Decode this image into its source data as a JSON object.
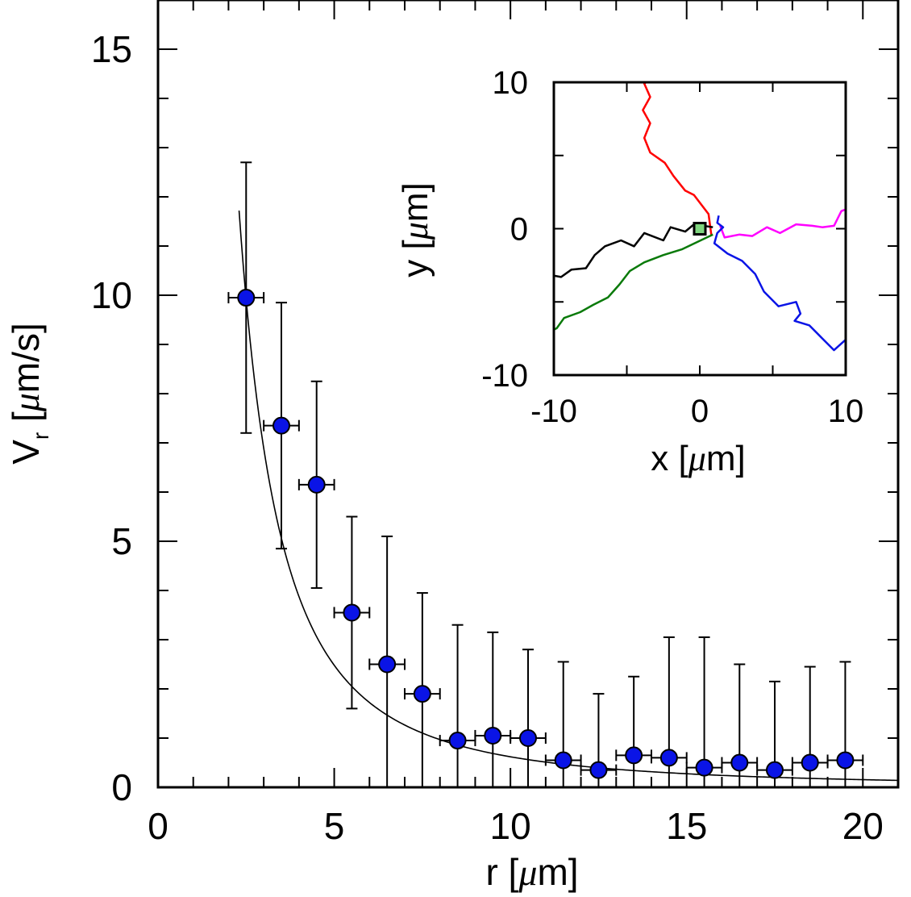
{
  "chart_data": [
    {
      "type": "scatter",
      "title": "",
      "xlabel": "r [μm]",
      "ylabel": "V_r [μm/s]",
      "xlabel_parts": {
        "pre": "r [",
        "mu": "μ",
        "post": "m]"
      },
      "ylabel_parts": {
        "main": "V",
        "sub": "r",
        "pre": " [",
        "mu": "μ",
        "post": "m/s]"
      },
      "xlim": [
        0,
        21
      ],
      "ylim": [
        0,
        16
      ],
      "xticks": [
        0,
        5,
        10,
        15,
        20
      ],
      "yticks": [
        0,
        5,
        10,
        15
      ],
      "xtick_labels": [
        "0",
        "5",
        "10",
        "15",
        "20"
      ],
      "ytick_labels": [
        "0",
        "5",
        "10",
        "15"
      ],
      "grid": false,
      "marker_color": "#0a14e6",
      "series": [
        {
          "x": [
            2.5,
            3.5,
            4.5,
            5.5,
            6.5,
            7.5,
            8.5,
            9.5,
            10.5,
            11.5,
            12.5,
            13.5,
            14.5,
            15.5,
            16.5,
            17.5,
            18.5,
            19.5
          ],
          "y": [
            9.95,
            7.35,
            6.15,
            3.55,
            2.5,
            1.9,
            0.95,
            1.05,
            1.0,
            0.55,
            0.35,
            0.65,
            0.6,
            0.4,
            0.5,
            0.35,
            0.5,
            0.55
          ],
          "y_err": [
            2.75,
            2.5,
            2.1,
            1.95,
            2.6,
            2.05,
            2.35,
            2.1,
            1.8,
            2.0,
            1.55,
            1.6,
            2.45,
            2.65,
            2.0,
            1.8,
            1.95,
            2.0
          ],
          "x_err": [
            0.5,
            0.5,
            0.5,
            0.5,
            0.5,
            0.5,
            0.5,
            0.5,
            0.5,
            0.5,
            0.5,
            0.5,
            0.5,
            0.5,
            0.5,
            0.5,
            0.5,
            0.5
          ]
        }
      ],
      "fit_curve": {
        "form": "A/r^n",
        "A": 62,
        "n": 2,
        "x_start": 2.3,
        "x_end": 21,
        "color": "#000000"
      }
    },
    {
      "type": "line",
      "title": "",
      "xlabel": "x [μm]",
      "ylabel": "y [μm]",
      "xlabel_parts": {
        "pre": "x [",
        "mu": "μ",
        "post": "m]"
      },
      "ylabel_parts": {
        "pre": "y [",
        "mu": "μ",
        "post": "m]"
      },
      "xlim": [
        -10,
        10
      ],
      "ylim": [
        -10,
        10
      ],
      "xticks": [
        -10,
        0,
        10
      ],
      "yticks": [
        -10,
        0,
        10
      ],
      "xtick_labels": [
        "-10",
        "0",
        "10"
      ],
      "ytick_labels": [
        "-10",
        "0",
        "10"
      ],
      "grid": false,
      "center_marker": {
        "x": 0,
        "y": 0,
        "color": "#7fd67f"
      },
      "series": [
        {
          "color": "#ff0000",
          "points": [
            [
              0.8,
              -0.5
            ],
            [
              0.6,
              1.0
            ],
            [
              -0.4,
              2.3
            ],
            [
              -1.0,
              2.6
            ],
            [
              -1.8,
              3.6
            ],
            [
              -2.4,
              4.5
            ],
            [
              -3.4,
              5.2
            ],
            [
              -3.8,
              6.2
            ],
            [
              -3.4,
              7.2
            ],
            [
              -3.9,
              8.1
            ],
            [
              -3.4,
              9.0
            ],
            [
              -3.8,
              9.9
            ],
            [
              -3.3,
              10.3
            ],
            [
              -4.1,
              10.9
            ]
          ]
        },
        {
          "color": "#000000",
          "points": [
            [
              0.9,
              0.1
            ],
            [
              -0.4,
              0.3
            ],
            [
              -1.0,
              -0.2
            ],
            [
              -2.0,
              0.1
            ],
            [
              -2.5,
              -0.8
            ],
            [
              -3.8,
              -0.3
            ],
            [
              -4.5,
              -1.2
            ],
            [
              -5.4,
              -0.8
            ],
            [
              -6.5,
              -1.2
            ],
            [
              -7.2,
              -1.8
            ],
            [
              -7.8,
              -2.7
            ],
            [
              -8.8,
              -2.8
            ],
            [
              -9.5,
              -3.3
            ],
            [
              -10.6,
              -3.1
            ]
          ]
        },
        {
          "color": "#0a7a0a",
          "points": [
            [
              0.9,
              -0.4
            ],
            [
              -1.2,
              -1.4
            ],
            [
              -2.5,
              -1.8
            ],
            [
              -3.8,
              -2.3
            ],
            [
              -4.8,
              -2.9
            ],
            [
              -5.5,
              -3.8
            ],
            [
              -6.3,
              -4.7
            ],
            [
              -7.3,
              -5.2
            ],
            [
              -8.2,
              -5.7
            ],
            [
              -9.3,
              -6.1
            ],
            [
              -9.8,
              -6.8
            ],
            [
              -10.4,
              -7.1
            ]
          ]
        },
        {
          "color": "#ff00ff",
          "points": [
            [
              1.4,
              0.2
            ],
            [
              1.7,
              -0.6
            ],
            [
              2.7,
              -0.4
            ],
            [
              3.6,
              -0.5
            ],
            [
              4.6,
              0.1
            ],
            [
              5.5,
              -0.3
            ],
            [
              6.6,
              0.3
            ],
            [
              7.7,
              0.2
            ],
            [
              8.4,
              0.1
            ],
            [
              9.2,
              0.2
            ],
            [
              9.7,
              1.2
            ],
            [
              10.2,
              1.4
            ],
            [
              10.6,
              2.8
            ]
          ]
        },
        {
          "color": "#0a14e6",
          "points": [
            [
              1.3,
              0.9
            ],
            [
              1.2,
              0.4
            ],
            [
              1.6,
              0.1
            ],
            [
              1.2,
              -0.3
            ],
            [
              1.0,
              -1.0
            ],
            [
              1.9,
              -1.7
            ],
            [
              2.9,
              -2.2
            ],
            [
              3.8,
              -3.1
            ],
            [
              4.4,
              -4.3
            ],
            [
              5.4,
              -5.3
            ],
            [
              6.6,
              -5.0
            ],
            [
              6.9,
              -5.8
            ],
            [
              6.5,
              -6.3
            ],
            [
              7.5,
              -6.6
            ],
            [
              8.4,
              -7.5
            ],
            [
              9.2,
              -8.3
            ],
            [
              10.2,
              -7.4
            ],
            [
              10.7,
              -8.1
            ]
          ]
        }
      ]
    }
  ]
}
